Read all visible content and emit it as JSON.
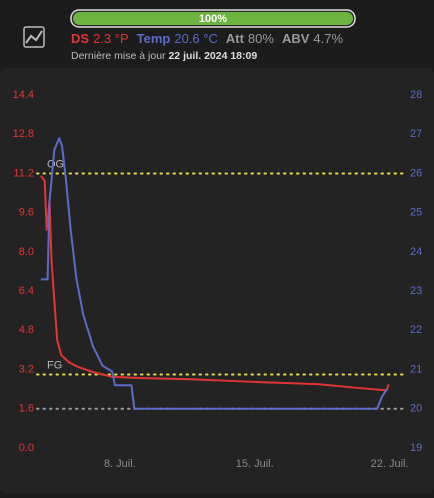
{
  "header": {
    "progress": {
      "value": 100,
      "label": "100%"
    },
    "readings": [
      "2.3 °P",
      "20.6 °C"
    ],
    "extra": [
      {
        "name": "Att",
        "value": "80%"
      },
      {
        "name": "ABV",
        "value": "4.7%"
      }
    ],
    "updated_label": "Dernière mise à jour",
    "updated_at": "22 juil. 2024 18:09"
  },
  "chart_data": {
    "type": "line",
    "xlim": [
      3.7,
      22.8
    ],
    "xticks": [
      {
        "value": 8,
        "label": "8. Juil."
      },
      {
        "value": 15,
        "label": "15. Juil."
      },
      {
        "value": 22,
        "label": "22. Juil."
      }
    ],
    "ylim": [
      0,
      14.4
    ],
    "yticks": [
      {
        "value": 0,
        "label": "0.0"
      },
      1.6,
      3.2,
      4.8,
      6.4,
      {
        "value": 8,
        "label": "8.0"
      },
      9.6,
      11.2,
      12.8,
      14.4
    ],
    "y2lim": [
      19,
      28
    ],
    "y2ticks": [
      19,
      20,
      21,
      22,
      23,
      24,
      25,
      26,
      27,
      28
    ],
    "series": [
      {
        "name": "DS",
        "color": "#e03535",
        "axis": "y",
        "x": [
          3.9,
          4.1,
          4.2,
          4.35,
          4.45,
          4.6,
          4.75,
          4.95,
          5.35,
          5.85,
          6.6,
          7.6,
          8.85,
          11.85,
          14.85,
          18.35,
          20.35,
          21.85,
          21.95
        ],
        "values": [
          11.1,
          10.9,
          8.9,
          10.1,
          7.7,
          6.0,
          4.4,
          3.8,
          3.5,
          3.3,
          3.1,
          2.9,
          2.86,
          2.8,
          2.7,
          2.6,
          2.45,
          2.35,
          2.6
        ]
      },
      {
        "name": "Temp",
        "color": "#5b6bc8",
        "axis": "y2",
        "x": [
          3.9,
          4.25,
          4.35,
          4.6,
          4.85,
          5.0,
          5.2,
          5.45,
          5.75,
          6.1,
          6.6,
          7.1,
          7.6,
          7.75,
          8.6,
          8.75,
          21.35,
          21.6,
          21.85
        ],
        "values": [
          23.3,
          23.3,
          25.3,
          26.6,
          26.9,
          26.7,
          25.85,
          24.55,
          23.3,
          22.4,
          21.6,
          21.1,
          20.95,
          20.6,
          20.6,
          20.0,
          20.0,
          20.3,
          20.5
        ]
      }
    ],
    "reference_lines": [
      {
        "label": "OG",
        "value": 11.2,
        "color": "#e6d84a"
      },
      {
        "label": "FG",
        "value": 3.0,
        "color": "#e6d84a"
      },
      {
        "value": 1.6,
        "color": "#9a9a9a"
      }
    ]
  }
}
